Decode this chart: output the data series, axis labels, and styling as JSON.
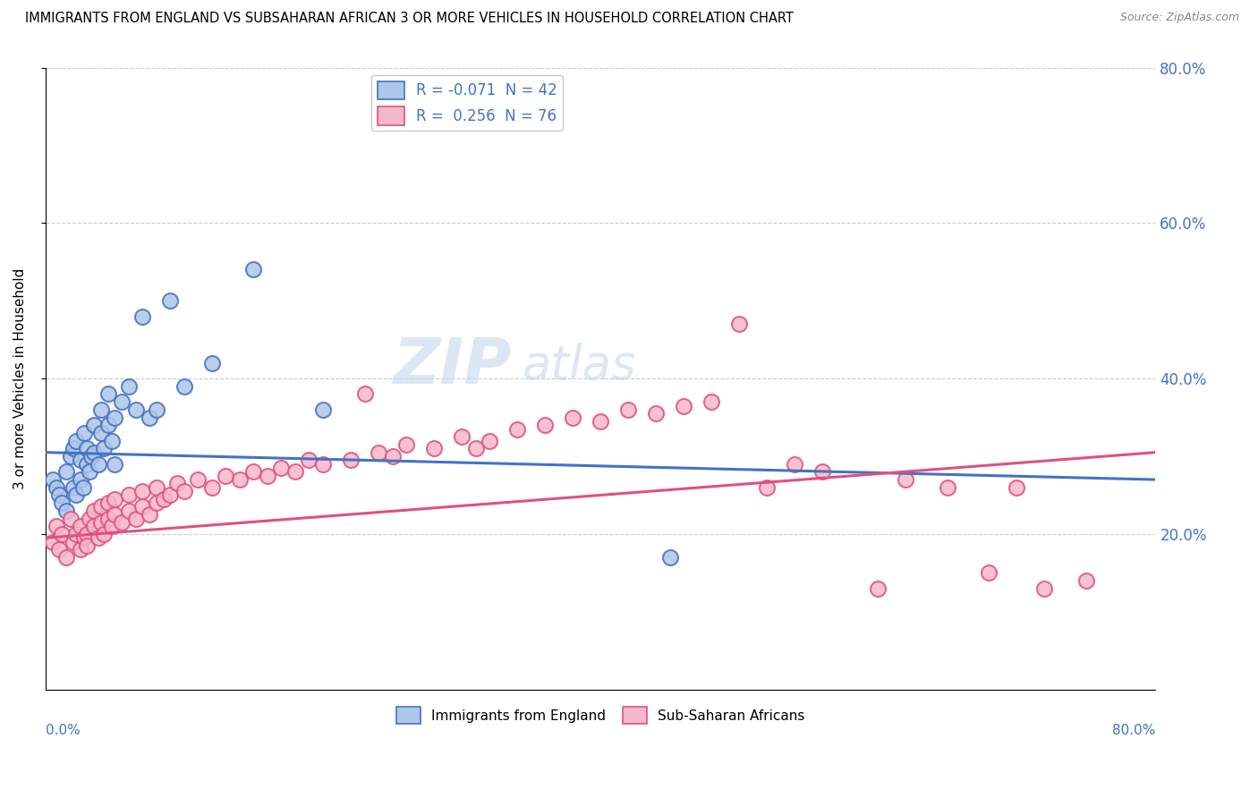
{
  "title": "IMMIGRANTS FROM ENGLAND VS SUBSAHARAN AFRICAN 3 OR MORE VEHICLES IN HOUSEHOLD CORRELATION CHART",
  "source": "Source: ZipAtlas.com",
  "ylabel": "3 or more Vehicles in Household",
  "right_yticks": [
    "20.0%",
    "40.0%",
    "60.0%",
    "80.0%"
  ],
  "right_ytick_vals": [
    0.2,
    0.4,
    0.6,
    0.8
  ],
  "xlim": [
    0.0,
    0.8
  ],
  "ylim": [
    0.0,
    0.8
  ],
  "legend_r1": "R = -0.071  N = 42",
  "legend_r2": "R =  0.256  N = 76",
  "blue_color": "#aec6e8",
  "pink_color": "#f5b8c8",
  "blue_line_color": "#4472c4",
  "pink_line_color": "#e05080",
  "blue_scatter_x": [
    0.005,
    0.008,
    0.01,
    0.012,
    0.015,
    0.015,
    0.018,
    0.02,
    0.02,
    0.022,
    0.022,
    0.025,
    0.025,
    0.027,
    0.028,
    0.03,
    0.03,
    0.032,
    0.033,
    0.035,
    0.035,
    0.038,
    0.04,
    0.04,
    0.042,
    0.045,
    0.045,
    0.048,
    0.05,
    0.05,
    0.055,
    0.06,
    0.065,
    0.07,
    0.075,
    0.08,
    0.09,
    0.1,
    0.12,
    0.15,
    0.2,
    0.45
  ],
  "blue_scatter_y": [
    0.27,
    0.26,
    0.25,
    0.24,
    0.23,
    0.28,
    0.3,
    0.31,
    0.26,
    0.25,
    0.32,
    0.27,
    0.295,
    0.26,
    0.33,
    0.29,
    0.31,
    0.28,
    0.3,
    0.305,
    0.34,
    0.29,
    0.33,
    0.36,
    0.31,
    0.34,
    0.38,
    0.32,
    0.35,
    0.29,
    0.37,
    0.39,
    0.36,
    0.48,
    0.35,
    0.36,
    0.5,
    0.39,
    0.42,
    0.54,
    0.36,
    0.17
  ],
  "pink_scatter_x": [
    0.005,
    0.008,
    0.01,
    0.012,
    0.015,
    0.018,
    0.02,
    0.022,
    0.025,
    0.025,
    0.028,
    0.03,
    0.03,
    0.032,
    0.035,
    0.035,
    0.038,
    0.04,
    0.04,
    0.042,
    0.045,
    0.045,
    0.048,
    0.05,
    0.05,
    0.055,
    0.06,
    0.06,
    0.065,
    0.07,
    0.07,
    0.075,
    0.08,
    0.08,
    0.085,
    0.09,
    0.095,
    0.1,
    0.11,
    0.12,
    0.13,
    0.14,
    0.15,
    0.16,
    0.17,
    0.18,
    0.19,
    0.2,
    0.22,
    0.23,
    0.24,
    0.25,
    0.26,
    0.28,
    0.3,
    0.31,
    0.32,
    0.34,
    0.36,
    0.38,
    0.4,
    0.42,
    0.44,
    0.46,
    0.48,
    0.5,
    0.52,
    0.54,
    0.56,
    0.6,
    0.62,
    0.65,
    0.68,
    0.7,
    0.72,
    0.75
  ],
  "pink_scatter_y": [
    0.19,
    0.21,
    0.18,
    0.2,
    0.17,
    0.22,
    0.19,
    0.2,
    0.18,
    0.21,
    0.195,
    0.2,
    0.185,
    0.22,
    0.21,
    0.23,
    0.195,
    0.215,
    0.235,
    0.2,
    0.22,
    0.24,
    0.21,
    0.225,
    0.245,
    0.215,
    0.23,
    0.25,
    0.22,
    0.235,
    0.255,
    0.225,
    0.24,
    0.26,
    0.245,
    0.25,
    0.265,
    0.255,
    0.27,
    0.26,
    0.275,
    0.27,
    0.28,
    0.275,
    0.285,
    0.28,
    0.295,
    0.29,
    0.295,
    0.38,
    0.305,
    0.3,
    0.315,
    0.31,
    0.325,
    0.31,
    0.32,
    0.335,
    0.34,
    0.35,
    0.345,
    0.36,
    0.355,
    0.365,
    0.37,
    0.47,
    0.26,
    0.29,
    0.28,
    0.13,
    0.27,
    0.26,
    0.15,
    0.26,
    0.13,
    0.14
  ]
}
